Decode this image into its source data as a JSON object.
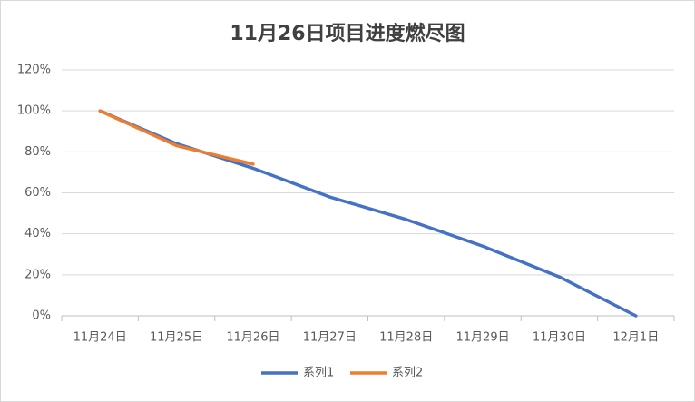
{
  "chart_data": {
    "type": "line",
    "title": "11月26日项目进度燃尽图",
    "categories": [
      "11月24日",
      "11月25日",
      "11月26日",
      "11月27日",
      "11月28日",
      "11月29日",
      "11月30日",
      "12月1日"
    ],
    "series": [
      {
        "name": "系列1",
        "color": "#4472c4",
        "values": [
          100,
          84,
          72,
          58,
          47,
          34,
          19,
          0
        ]
      },
      {
        "name": "系列2",
        "color": "#ed7d31",
        "values": [
          100,
          83,
          74,
          null,
          null,
          null,
          null,
          null
        ]
      }
    ],
    "ylim": [
      0,
      120
    ],
    "yticks": [
      {
        "value": 0,
        "label": "0%"
      },
      {
        "value": 20,
        "label": "20%"
      },
      {
        "value": 40,
        "label": "40%"
      },
      {
        "value": 60,
        "label": "60%"
      },
      {
        "value": 80,
        "label": "80%"
      },
      {
        "value": 100,
        "label": "100%"
      },
      {
        "value": 120,
        "label": "120%"
      }
    ],
    "grid": true,
    "legend": "bottom"
  }
}
